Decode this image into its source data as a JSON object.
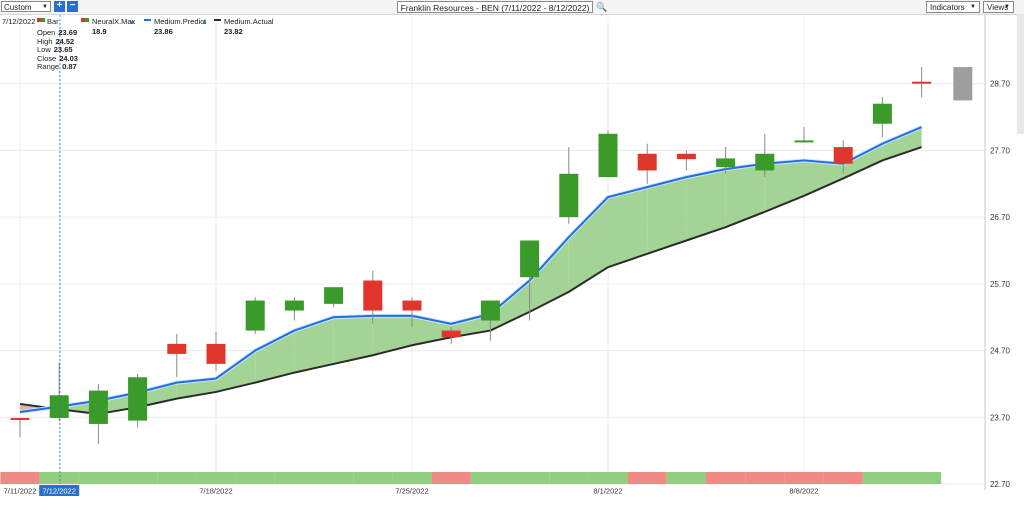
{
  "toolbar": {
    "preset_label": "Custom",
    "zoom_in": "+",
    "zoom_out": "−",
    "title": "Franklin Resources - BEN (7/11/2022 - 8/12/2022)",
    "indicators_label": "Indicators",
    "views_label": "Views"
  },
  "legend": {
    "date": "7/12/2022",
    "bar_label": "Bar",
    "neuralx_label": "NeuralX.Max",
    "neuralx_value": "18.9",
    "predict_label": "Medium.Predict",
    "predict_value": "23.86",
    "actual_label": "Medium.Actual",
    "actual_value": "23.82",
    "open_label": "Open",
    "open_value": "23.69",
    "high_label": "High",
    "high_value": "24.52",
    "low_label": "Low",
    "low_value": "23.65",
    "close_label": "Close",
    "close_value": "24.03",
    "range_label": "Range",
    "range_value": "0.87"
  },
  "colors": {
    "up": "#3a9a2a",
    "down": "#e0352b",
    "predict": "#1f6fe0",
    "actual": "#2b2b2b",
    "fill_up": "#9fd28f",
    "fill_down": "#e8aaa6",
    "strip_up": "#8fcf7f",
    "strip_down": "#ef8b84",
    "projected": "#9e9e9e"
  },
  "chart_data": {
    "type": "candlestick",
    "ylim": [
      22.7,
      29.7
    ],
    "yticks": [
      "22.70",
      "23.70",
      "24.70",
      "25.70",
      "26.70",
      "27.70",
      "28.70"
    ],
    "xticks": [
      "7/11/2022",
      "7/12/2022",
      "7/18/2022",
      "7/25/2022",
      "8/1/2022",
      "8/8/2022"
    ],
    "candles": [
      {
        "date": "7/11/2022",
        "open": 23.69,
        "high": 23.69,
        "low": 23.4,
        "close": 23.67
      },
      {
        "date": "7/12/2022",
        "open": 23.69,
        "high": 24.52,
        "low": 23.65,
        "close": 24.03
      },
      {
        "date": "7/13/2022",
        "open": 23.6,
        "high": 24.2,
        "low": 23.3,
        "close": 24.1
      },
      {
        "date": "7/14/2022",
        "open": 23.65,
        "high": 24.35,
        "low": 23.55,
        "close": 24.3
      },
      {
        "date": "7/15/2022",
        "open": 24.8,
        "high": 24.95,
        "low": 24.3,
        "close": 24.65
      },
      {
        "date": "7/18/2022",
        "open": 24.8,
        "high": 24.98,
        "low": 24.4,
        "close": 24.5
      },
      {
        "date": "7/19/2022",
        "open": 25.0,
        "high": 25.5,
        "low": 24.95,
        "close": 25.45
      },
      {
        "date": "7/20/2022",
        "open": 25.3,
        "high": 25.5,
        "low": 25.15,
        "close": 25.45
      },
      {
        "date": "7/21/2022",
        "open": 25.4,
        "high": 25.65,
        "low": 25.35,
        "close": 25.65
      },
      {
        "date": "7/22/2022",
        "open": 25.75,
        "high": 25.9,
        "low": 25.1,
        "close": 25.3
      },
      {
        "date": "7/25/2022",
        "open": 25.45,
        "high": 25.5,
        "low": 25.05,
        "close": 25.3
      },
      {
        "date": "7/26/2022",
        "open": 25.0,
        "high": 25.05,
        "low": 24.8,
        "close": 24.9
      },
      {
        "date": "7/27/2022",
        "open": 25.15,
        "high": 25.45,
        "low": 24.85,
        "close": 25.45
      },
      {
        "date": "7/28/2022",
        "open": 25.8,
        "high": 26.3,
        "low": 25.15,
        "close": 26.35
      },
      {
        "date": "7/29/2022",
        "open": 26.7,
        "high": 27.75,
        "low": 26.6,
        "close": 27.35
      },
      {
        "date": "8/1/2022",
        "open": 27.3,
        "high": 28.0,
        "low": 27.3,
        "close": 27.95
      },
      {
        "date": "8/2/2022",
        "open": 27.65,
        "high": 27.8,
        "low": 27.2,
        "close": 27.4
      },
      {
        "date": "8/3/2022",
        "open": 27.65,
        "high": 27.7,
        "low": 27.4,
        "close": 27.57
      },
      {
        "date": "8/4/2022",
        "open": 27.45,
        "high": 27.75,
        "low": 27.35,
        "close": 27.58
      },
      {
        "date": "8/5/2022",
        "open": 27.4,
        "high": 27.95,
        "low": 27.3,
        "close": 27.65
      },
      {
        "date": "8/8/2022",
        "open": 27.83,
        "high": 28.05,
        "low": 27.83,
        "close": 27.85
      },
      {
        "date": "8/9/2022",
        "open": 27.75,
        "high": 27.85,
        "low": 27.35,
        "close": 27.5
      },
      {
        "date": "8/10/2022",
        "open": 28.1,
        "high": 28.5,
        "low": 27.9,
        "close": 28.4
      },
      {
        "date": "8/11/2022",
        "open": 28.73,
        "high": 28.95,
        "low": 28.5,
        "close": 28.7
      }
    ],
    "projected_bar": {
      "date": "8/12/2022",
      "high": 28.95,
      "low": 28.45
    },
    "series": [
      {
        "name": "Medium.Predict",
        "values": [
          23.78,
          23.86,
          23.95,
          24.07,
          24.22,
          24.28,
          24.7,
          25.0,
          25.2,
          25.22,
          25.22,
          25.1,
          25.25,
          25.75,
          26.4,
          27.0,
          27.15,
          27.3,
          27.42,
          27.5,
          27.55,
          27.5,
          27.8,
          28.05
        ]
      },
      {
        "name": "Medium.Actual",
        "values": [
          23.9,
          23.82,
          23.75,
          23.85,
          23.98,
          24.08,
          24.22,
          24.37,
          24.5,
          24.63,
          24.78,
          24.9,
          25.0,
          25.28,
          25.58,
          25.95,
          26.15,
          26.35,
          26.55,
          26.78,
          27.02,
          27.28,
          27.55,
          27.75
        ]
      }
    ],
    "signal_strip": [
      "down",
      "up",
      "up",
      "up",
      "up",
      "up",
      "up",
      "up",
      "up",
      "up",
      "up",
      "down",
      "up",
      "up",
      "up",
      "up",
      "down",
      "up",
      "down",
      "down",
      "down",
      "down",
      "up",
      "up"
    ]
  }
}
